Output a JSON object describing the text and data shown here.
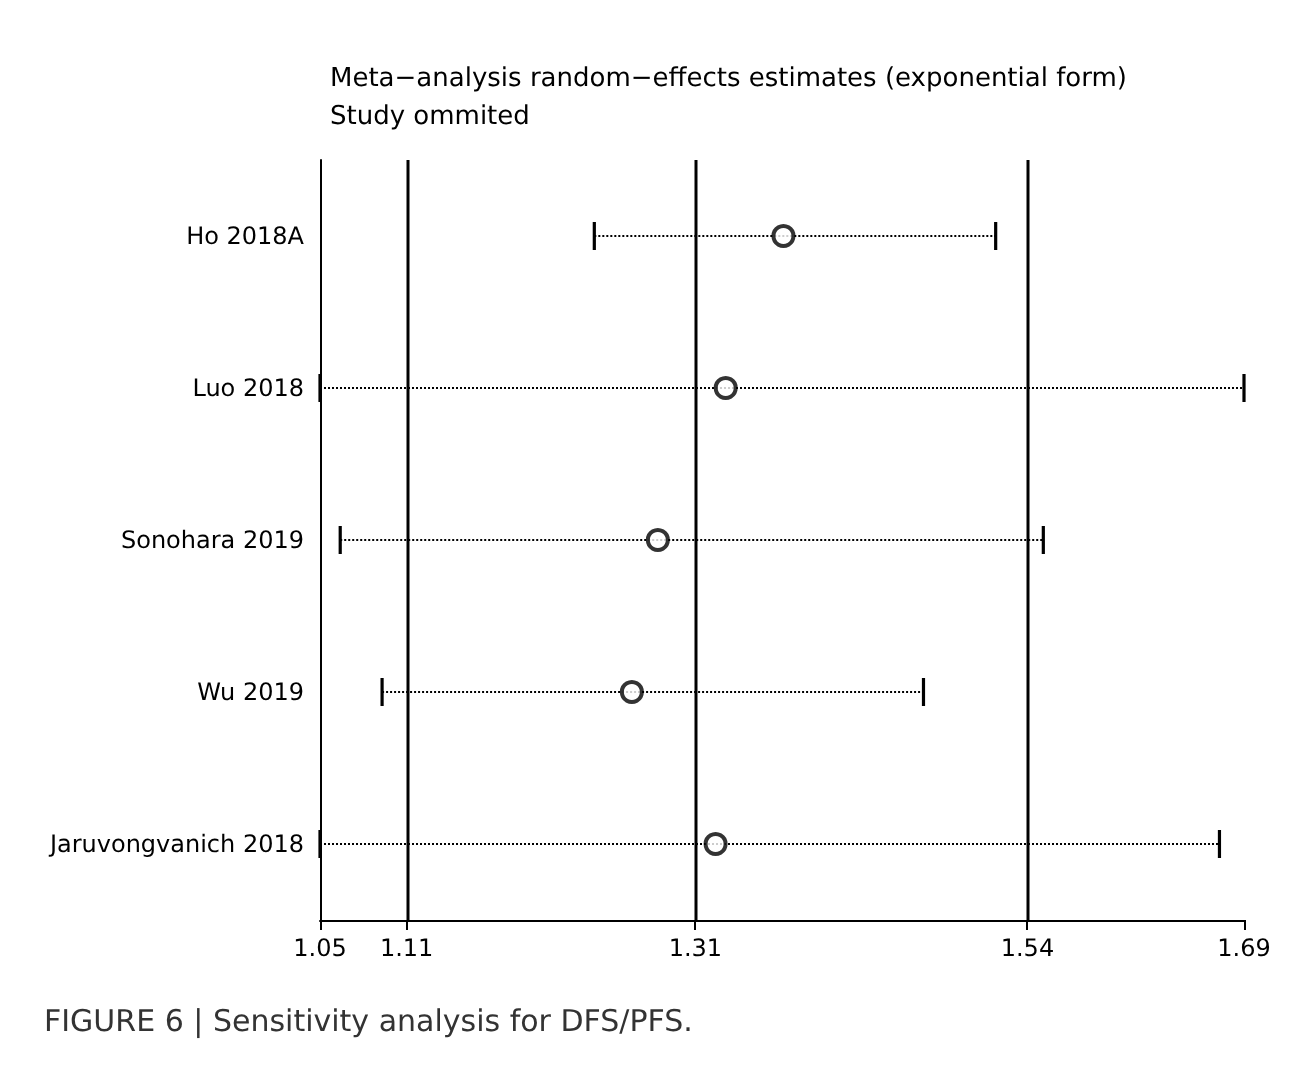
{
  "chart_data": {
    "type": "scatter",
    "orientation": "horizontal",
    "title": "Meta−analysis random−effects estimates (exponential form)",
    "subtitle": "Study ommited",
    "categories": [
      "Ho 2018A",
      "Luo 2018",
      "Sonohara 2019",
      "Wu 2019",
      "Jaruvongvanich 2018"
    ],
    "values": [
      1.371,
      1.331,
      1.284,
      1.266,
      1.324
    ],
    "errors": [
      [
        1.24,
        1.518
      ],
      [
        1.05,
        1.69
      ],
      [
        1.064,
        1.551
      ],
      [
        1.093,
        1.468
      ],
      [
        1.05,
        1.673
      ]
    ],
    "color": "#000000",
    "marker": "circle",
    "line_style": "dotted",
    "xlim": [
      1.05,
      1.69
    ],
    "xticks": [
      1.05,
      1.11,
      1.31,
      1.54,
      1.69
    ],
    "ref_lines": [
      {
        "axis": "x",
        "value": 1.11,
        "color": "#000000"
      },
      {
        "axis": "x",
        "value": 1.31,
        "color": "#000000"
      },
      {
        "axis": "x",
        "value": 1.54,
        "color": "#000000"
      }
    ],
    "grid": false,
    "annotations": [
      "FIGURE 6 | Sensitivity analysis for DFS/PFS."
    ]
  }
}
